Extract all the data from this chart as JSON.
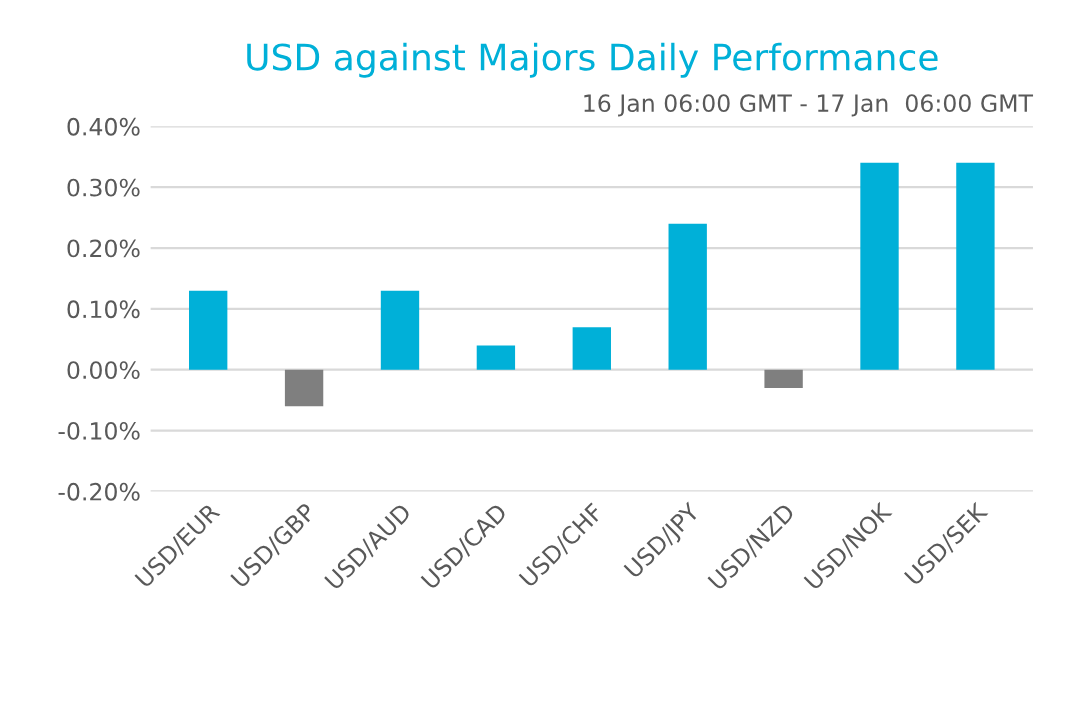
{
  "chart_data": {
    "type": "bar",
    "title": "USD against Majors Daily Performance",
    "subtitle": "16 Jan 06:00 GMT - 17 Jan  06:00 GMT",
    "categories": [
      "USD/EUR",
      "USD/GBP",
      "USD/AUD",
      "USD/CAD",
      "USD/CHF",
      "USD/JPY",
      "USD/NZD",
      "USD/NOK",
      "USD/SEK"
    ],
    "values": [
      0.13,
      -0.06,
      0.13,
      0.04,
      0.07,
      0.24,
      -0.03,
      0.34,
      0.34
    ],
    "colors": [
      "#00b0d8",
      "#7f7f7f",
      "#00b0d8",
      "#00b0d8",
      "#00b0d8",
      "#00b0d8",
      "#7f7f7f",
      "#00b0d8",
      "#00b0d8"
    ],
    "ylim": [
      -0.2,
      0.4
    ],
    "yticks": [
      {
        "value": -0.2,
        "label": "-0.20%"
      },
      {
        "value": -0.1,
        "label": "-0.10%"
      },
      {
        "value": 0,
        "label": "0.00%"
      },
      {
        "value": 0.1,
        "label": "0.10%"
      },
      {
        "value": 0.2,
        "label": "0.20%"
      },
      {
        "value": 0.3,
        "label": "0.30%"
      },
      {
        "value": 0.4,
        "label": "0.40%"
      }
    ],
    "grid": "y"
  }
}
